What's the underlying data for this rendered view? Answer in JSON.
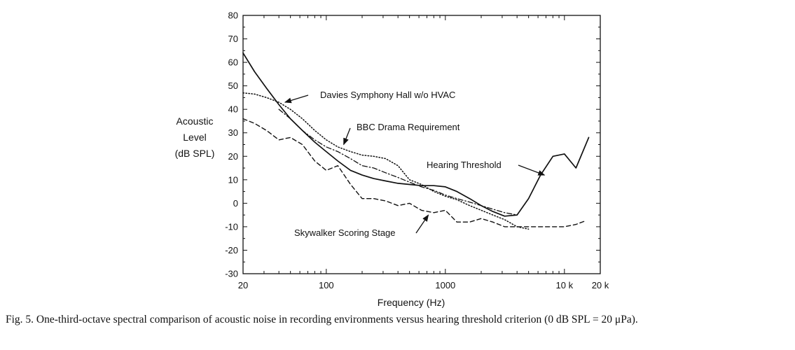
{
  "chart_data": {
    "type": "line",
    "x_scale": "log",
    "xlabel": "Frequency (Hz)",
    "ylabel_lines": [
      "Acoustic",
      "Level",
      "(dB SPL)"
    ],
    "xlim": [
      20,
      20000
    ],
    "ylim": [
      -30,
      80
    ],
    "y_ticks": [
      -30,
      -20,
      -10,
      0,
      10,
      20,
      30,
      40,
      50,
      60,
      70,
      80
    ],
    "x_ticks": [
      {
        "value": 20,
        "label": "20"
      },
      {
        "value": 100,
        "label": "100"
      },
      {
        "value": 1000,
        "label": "1000"
      },
      {
        "value": 10000,
        "label": "10 k"
      },
      {
        "value": 20000,
        "label": "20 k"
      }
    ],
    "grid": false,
    "series": [
      {
        "name": "Hearing Threshold",
        "style": "solid",
        "x": [
          20,
          25,
          31.5,
          40,
          50,
          63,
          80,
          100,
          125,
          160,
          200,
          250,
          315,
          400,
          500,
          630,
          800,
          1000,
          1250,
          1600,
          2000,
          2500,
          3150,
          4000,
          5000,
          6300,
          8000,
          10000,
          12500,
          16000
        ],
        "y": [
          64,
          56,
          49,
          42,
          36,
          31,
          26,
          22,
          18,
          14,
          12,
          10.5,
          9.5,
          8.5,
          8,
          7.5,
          7.5,
          7,
          5,
          2,
          -1,
          -3.5,
          -5.5,
          -5,
          2,
          12,
          20,
          21,
          15,
          28
        ]
      },
      {
        "name": "Davies Symphony Hall w/o HVAC",
        "style": "dotted",
        "x": [
          20,
          25,
          31.5,
          40,
          50,
          63,
          80,
          100,
          125,
          160,
          200,
          250,
          315,
          400,
          500,
          630,
          800,
          1000,
          1250,
          1600,
          2000,
          2500,
          3150,
          4000,
          5000
        ],
        "y": [
          47,
          46.5,
          45,
          43,
          40,
          36,
          31,
          27,
          24,
          22,
          20.5,
          20,
          19,
          16,
          10,
          8,
          5,
          3,
          1.5,
          -1,
          -3,
          -5,
          -7,
          -10,
          -11
        ]
      },
      {
        "name": "BBC Drama Requirement",
        "style": "dashdot",
        "x": [
          40,
          50,
          63,
          80,
          100,
          125,
          160,
          200,
          250,
          315,
          400,
          500,
          630,
          800,
          1000,
          1250,
          1600,
          2000,
          2500,
          3150,
          4000
        ],
        "y": [
          40,
          36,
          31,
          27,
          24,
          22,
          19,
          16,
          15,
          13,
          11,
          9,
          7,
          5.5,
          3.5,
          2,
          0.5,
          -1,
          -2.5,
          -4,
          -5
        ]
      },
      {
        "name": "Skywalker Scoring Stage",
        "style": "dashed",
        "x": [
          20,
          25,
          31.5,
          40,
          50,
          63,
          80,
          100,
          125,
          160,
          200,
          250,
          315,
          400,
          500,
          630,
          800,
          1000,
          1250,
          1600,
          2000,
          2500,
          3150,
          4000,
          5000,
          6300,
          8000,
          10000,
          12500,
          15000
        ],
        "y": [
          36,
          34,
          31,
          27,
          28,
          25,
          18,
          14,
          16,
          8,
          2,
          2,
          1,
          -1,
          0,
          -3,
          -4,
          -3,
          -8,
          -8,
          -6.5,
          -8,
          -10,
          -10,
          -10,
          -10,
          -10,
          -10,
          -9,
          -7.5
        ]
      }
    ],
    "annotations": [
      {
        "text": "Davies Symphony Hall w/o HVAC",
        "series": "Davies Symphony Hall w/o HVAC",
        "arrow_to": [
          45,
          43
        ]
      },
      {
        "text": "BBC Drama Requirement",
        "series": "BBC Drama Requirement",
        "arrow_to": [
          140,
          25
        ]
      },
      {
        "text": "Hearing Threshold",
        "series": "Hearing Threshold",
        "arrow_to": [
          6800,
          12
        ]
      },
      {
        "text": "Skywalker Scoring Stage",
        "series": "Skywalker Scoring Stage",
        "arrow_to": [
          720,
          -5
        ]
      }
    ]
  },
  "caption": "Fig. 5. One-third-octave spectral comparison of acoustic noise in recording environments versus hearing threshold criterion (0 dB SPL = 20 μPa)."
}
